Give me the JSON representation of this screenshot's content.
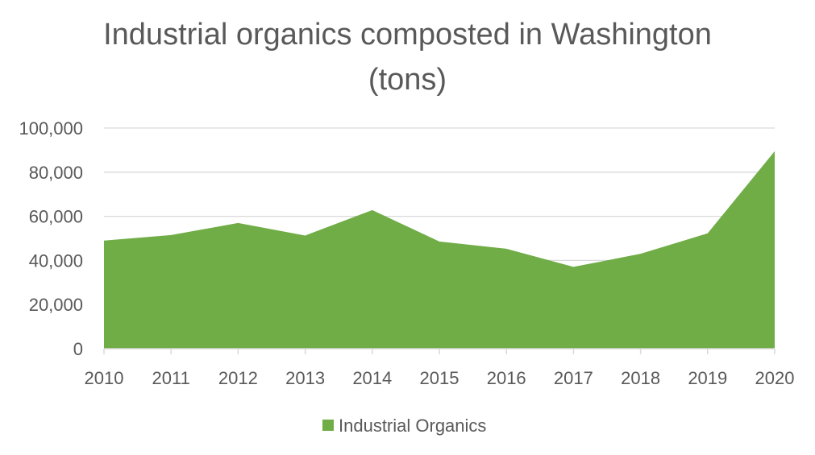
{
  "chart_data": {
    "type": "area",
    "title_lines": [
      "Industrial organics composted in Washington",
      "(tons)"
    ],
    "xlabel": "",
    "ylabel": "",
    "categories": [
      "2010",
      "2011",
      "2012",
      "2013",
      "2014",
      "2015",
      "2016",
      "2017",
      "2018",
      "2019",
      "2020"
    ],
    "y_ticks": [
      "0",
      "20,000",
      "40,000",
      "60,000",
      "80,000",
      "100,000"
    ],
    "ylim": [
      0,
      100000
    ],
    "series": [
      {
        "name": "Industrial Organics",
        "color": "#70AD47",
        "values": [
          49000,
          51500,
          57000,
          51300,
          62800,
          48600,
          45300,
          37100,
          43000,
          52300,
          89500
        ]
      }
    ],
    "grid": true,
    "legend": "bottom"
  }
}
